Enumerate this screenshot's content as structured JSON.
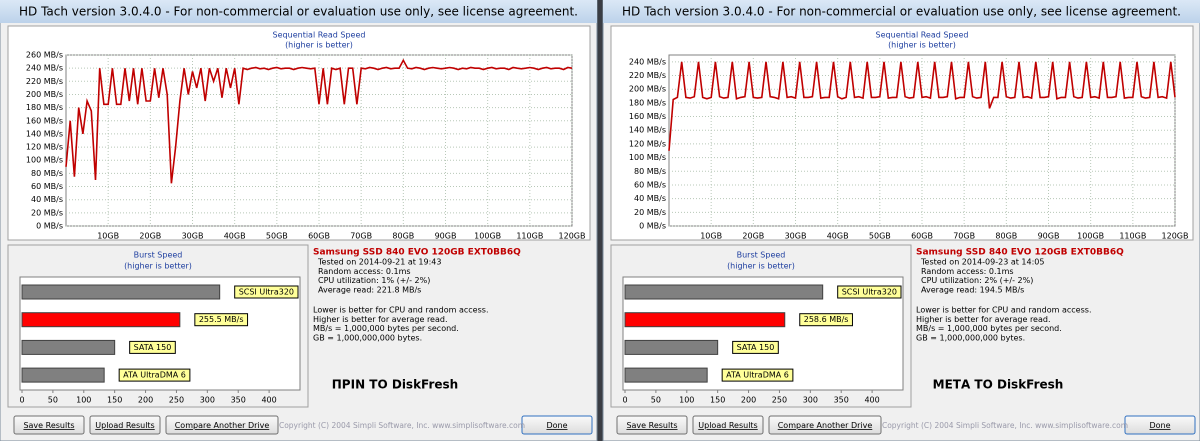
{
  "windows": [
    {
      "title": "HD Tach version 3.0.4.0  - For non-commercial or evaluation use only, see license agreement.",
      "read": {
        "type": "line",
        "title": "Sequential Read Speed",
        "subtitle": "(higher is better)",
        "color": "#c00000",
        "x": [
          0,
          1,
          2,
          3,
          4,
          5,
          6,
          7,
          8,
          9,
          10,
          11,
          12,
          13,
          14,
          15,
          16,
          17,
          18,
          19,
          20,
          21,
          22,
          23,
          24,
          25,
          26,
          27,
          28,
          29,
          30,
          31,
          32,
          33,
          34,
          35,
          36,
          37,
          38,
          39,
          40,
          41,
          42,
          43,
          44,
          45,
          46,
          47,
          48,
          49,
          50,
          51,
          52,
          53,
          54,
          55,
          56,
          57,
          58,
          59,
          60,
          61,
          62,
          63,
          64,
          65,
          66,
          67,
          68,
          69,
          70,
          71,
          72,
          73,
          74,
          75,
          76,
          77,
          78,
          79,
          80,
          81,
          82,
          83,
          84,
          85,
          86,
          87,
          88,
          89,
          90,
          91,
          92,
          93,
          94,
          95,
          96,
          97,
          98,
          99,
          100,
          101,
          102,
          103,
          104,
          105,
          106,
          107,
          108,
          109,
          110,
          111,
          112,
          113,
          114,
          115,
          116,
          117,
          118,
          119,
          120
        ],
        "values": [
          90,
          160,
          75,
          180,
          140,
          190,
          175,
          70,
          240,
          185,
          185,
          240,
          185,
          185,
          240,
          190,
          240,
          185,
          240,
          190,
          190,
          240,
          195,
          240,
          200,
          65,
          120,
          190,
          240,
          200,
          235,
          210,
          240,
          190,
          240,
          220,
          240,
          195,
          240,
          210,
          240,
          185,
          240,
          238,
          240,
          241,
          239,
          240,
          238,
          240,
          241,
          239,
          240,
          240,
          238,
          240,
          241,
          240,
          239,
          240,
          185,
          240,
          185,
          240,
          238,
          240,
          185,
          240,
          240,
          185,
          240,
          239,
          241,
          240,
          238,
          240,
          241,
          239,
          240,
          240,
          252,
          240,
          239,
          241,
          240,
          238,
          240,
          241,
          240,
          239,
          240,
          241,
          240,
          238,
          240,
          239,
          241,
          240,
          240,
          238,
          240,
          241,
          239,
          240,
          240,
          238,
          241,
          240,
          239,
          240,
          241,
          240,
          238,
          240,
          241,
          239,
          240,
          240,
          238,
          241,
          240
        ],
        "xlim": [
          0,
          120
        ],
        "ylim": [
          0,
          260
        ],
        "xticks": [
          {
            "value": 10,
            "label": "10GB"
          },
          {
            "value": 20,
            "label": "20GB"
          },
          {
            "value": 30,
            "label": "30GB"
          },
          {
            "value": 40,
            "label": "40GB"
          },
          {
            "value": 50,
            "label": "50GB"
          },
          {
            "value": 60,
            "label": "60GB"
          },
          {
            "value": 70,
            "label": "70GB"
          },
          {
            "value": 80,
            "label": "80GB"
          },
          {
            "value": 90,
            "label": "90GB"
          },
          {
            "value": 100,
            "label": "100GB"
          },
          {
            "value": 110,
            "label": "110GB"
          },
          {
            "value": 120,
            "label": "120GB"
          }
        ],
        "yticks": [
          {
            "value": 0,
            "label": "0 MB/s"
          },
          {
            "value": 20,
            "label": "20 MB/s"
          },
          {
            "value": 40,
            "label": "40 MB/s"
          },
          {
            "value": 60,
            "label": "60 MB/s"
          },
          {
            "value": 80,
            "label": "80 MB/s"
          },
          {
            "value": 100,
            "label": "100 MB/s"
          },
          {
            "value": 120,
            "label": "120 MB/s"
          },
          {
            "value": 140,
            "label": "140 MB/s"
          },
          {
            "value": 160,
            "label": "160 MB/s"
          },
          {
            "value": 180,
            "label": "180 MB/s"
          },
          {
            "value": 200,
            "label": "200 MB/s"
          },
          {
            "value": 220,
            "label": "220 MB/s"
          },
          {
            "value": 240,
            "label": "240 MB/s"
          },
          {
            "value": 260,
            "label": "260 MB/s"
          }
        ],
        "grid": true
      },
      "burst": {
        "type": "hbar",
        "title": "Burst Speed",
        "subtitle": "(higher is better)",
        "bars": [
          {
            "label": "SCSI Ultra320",
            "value": 320,
            "color": "#808080"
          },
          {
            "value": 255.5,
            "value_label": "255.5 MB/s",
            "color": "#ff0000"
          },
          {
            "label": "SATA 150",
            "value": 150,
            "color": "#808080"
          },
          {
            "label": "ATA UltraDMA 6",
            "value": 133,
            "color": "#808080"
          }
        ],
        "xlim": [
          0,
          450
        ],
        "xticks": [
          0,
          50,
          100,
          150,
          200,
          250,
          300,
          350,
          400
        ]
      },
      "drive": "Samsung SSD 840 EVO 120GB EXT0BB6Q",
      "details": [
        "Tested on 2014-09-21 at 19:43",
        "Random access: 0.1ms",
        "CPU utilization: 1% (+/- 2%)",
        "Average read: 221.8 MB/s"
      ],
      "notes": [
        "Lower is better for CPU and random access.",
        "Higher is better for average read.",
        "MB/s = 1,000,000 bytes per second.",
        "GB = 1,000,000,000 bytes."
      ],
      "caption": "ΠΡΙΝ ΤΟ DiskFresh",
      "buttons": [
        "Save Results",
        "Upload Results",
        "Compare Another Drive",
        "Done"
      ],
      "copyright": "Copyright (C) 2004 Simpli Software, Inc. www.simplisoftware.com"
    },
    {
      "title": "HD Tach version 3.0.4.0  - For non-commercial or evaluation use only, see license agreement.",
      "read": {
        "type": "line",
        "title": "Sequential Read Speed",
        "subtitle": "(higher is better)",
        "color": "#c00000",
        "x": [
          0,
          1,
          2,
          3,
          4,
          5,
          6,
          7,
          8,
          9,
          10,
          11,
          12,
          13,
          14,
          15,
          16,
          17,
          18,
          19,
          20,
          21,
          22,
          23,
          24,
          25,
          26,
          27,
          28,
          29,
          30,
          31,
          32,
          33,
          34,
          35,
          36,
          37,
          38,
          39,
          40,
          41,
          42,
          43,
          44,
          45,
          46,
          47,
          48,
          49,
          50,
          51,
          52,
          53,
          54,
          55,
          56,
          57,
          58,
          59,
          60,
          61,
          62,
          63,
          64,
          65,
          66,
          67,
          68,
          69,
          70,
          71,
          72,
          73,
          74,
          75,
          76,
          77,
          78,
          79,
          80,
          81,
          82,
          83,
          84,
          85,
          86,
          87,
          88,
          89,
          90,
          91,
          92,
          93,
          94,
          95,
          96,
          97,
          98,
          99,
          100,
          101,
          102,
          103,
          104,
          105,
          106,
          107,
          108,
          109,
          110,
          111,
          112,
          113,
          114,
          115,
          116,
          117,
          118,
          119,
          120
        ],
        "values": [
          110,
          185,
          188,
          240,
          188,
          187,
          189,
          240,
          188,
          186,
          188,
          240,
          189,
          187,
          188,
          240,
          186,
          188,
          189,
          240,
          188,
          187,
          188,
          240,
          189,
          188,
          186,
          240,
          188,
          189,
          187,
          240,
          188,
          188,
          189,
          240,
          187,
          188,
          188,
          240,
          189,
          186,
          188,
          240,
          188,
          189,
          187,
          240,
          188,
          188,
          189,
          240,
          187,
          188,
          188,
          240,
          189,
          187,
          188,
          240,
          188,
          189,
          187,
          240,
          188,
          188,
          189,
          240,
          186,
          188,
          188,
          240,
          189,
          187,
          188,
          240,
          172,
          188,
          188,
          240,
          189,
          187,
          188,
          240,
          188,
          189,
          187,
          240,
          188,
          188,
          189,
          240,
          186,
          188,
          188,
          240,
          189,
          187,
          188,
          240,
          188,
          189,
          187,
          240,
          188,
          188,
          189,
          240,
          187,
          188,
          188,
          240,
          189,
          187,
          188,
          240,
          188,
          189,
          187,
          240,
          188
        ],
        "xlim": [
          0,
          120
        ],
        "ylim": [
          0,
          250
        ],
        "xticks": [
          {
            "value": 10,
            "label": "10GB"
          },
          {
            "value": 20,
            "label": "20GB"
          },
          {
            "value": 30,
            "label": "30GB"
          },
          {
            "value": 40,
            "label": "40GB"
          },
          {
            "value": 50,
            "label": "50GB"
          },
          {
            "value": 60,
            "label": "60GB"
          },
          {
            "value": 70,
            "label": "70GB"
          },
          {
            "value": 80,
            "label": "80GB"
          },
          {
            "value": 90,
            "label": "90GB"
          },
          {
            "value": 100,
            "label": "100GB"
          },
          {
            "value": 110,
            "label": "110GB"
          },
          {
            "value": 120,
            "label": "120GB"
          }
        ],
        "yticks": [
          {
            "value": 0,
            "label": "0 MB/s"
          },
          {
            "value": 20,
            "label": "20 MB/s"
          },
          {
            "value": 40,
            "label": "40 MB/s"
          },
          {
            "value": 60,
            "label": "60 MB/s"
          },
          {
            "value": 80,
            "label": "80 MB/s"
          },
          {
            "value": 100,
            "label": "100 MB/s"
          },
          {
            "value": 120,
            "label": "120 MB/s"
          },
          {
            "value": 140,
            "label": "140 MB/s"
          },
          {
            "value": 160,
            "label": "160 MB/s"
          },
          {
            "value": 180,
            "label": "180 MB/s"
          },
          {
            "value": 200,
            "label": "200 MB/s"
          },
          {
            "value": 220,
            "label": "220 MB/s"
          },
          {
            "value": 240,
            "label": "240 MB/s"
          }
        ],
        "grid": true
      },
      "burst": {
        "type": "hbar",
        "title": "Burst Speed",
        "subtitle": "(higher is better)",
        "bars": [
          {
            "label": "SCSI Ultra320",
            "value": 320,
            "color": "#808080"
          },
          {
            "value": 258.6,
            "value_label": "258.6 MB/s",
            "color": "#ff0000"
          },
          {
            "label": "SATA 150",
            "value": 150,
            "color": "#808080"
          },
          {
            "label": "ATA UltraDMA 6",
            "value": 133,
            "color": "#808080"
          }
        ],
        "xlim": [
          0,
          450
        ],
        "xticks": [
          0,
          50,
          100,
          150,
          200,
          250,
          300,
          350,
          400
        ]
      },
      "drive": "Samsung SSD 840 EVO 120GB EXT0BB6Q",
      "details": [
        "Tested on 2014-09-23 at 14:05",
        "Random access: 0.1ms",
        "CPU utilization: 2% (+/- 2%)",
        "Average read: 194.5 MB/s"
      ],
      "notes": [
        "Lower is better for CPU and random access.",
        "Higher is better for average read.",
        "MB/s = 1,000,000 bytes per second.",
        "GB = 1,000,000,000 bytes."
      ],
      "caption": "ΜΕΤΑ ΤΟ DiskFresh",
      "buttons": [
        "Save Results",
        "Upload Results",
        "Compare Another Drive",
        "Done"
      ],
      "copyright": "Copyright (C) 2004 Simpli Software, Inc. www.simplisoftware.com"
    }
  ]
}
